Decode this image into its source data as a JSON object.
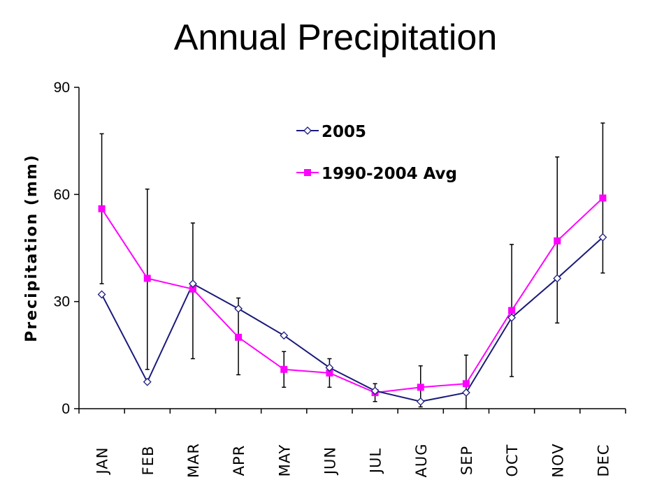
{
  "chart_data": {
    "type": "line",
    "title": "Annual Precipitation",
    "ylabel": "Precipitation (mm)",
    "xlabel": "",
    "ylim": [
      0,
      90
    ],
    "yticks": [
      0,
      30,
      60,
      90
    ],
    "categories": [
      "JAN",
      "FEB",
      "MAR",
      "APR",
      "MAY",
      "JUN",
      "JUL",
      "AUG",
      "SEP",
      "OCT",
      "NOV",
      "DEC"
    ],
    "series": [
      {
        "name": "2005",
        "color": "#1a1a7a",
        "marker": "open-diamond",
        "values": [
          32,
          7.5,
          35,
          28,
          20.5,
          11.5,
          5,
          2,
          4.5,
          25.5,
          36.5,
          48
        ]
      },
      {
        "name": "1990-2004 Avg",
        "color": "#ff00ff",
        "marker": "filled-square",
        "values": [
          56,
          36.5,
          33.5,
          20,
          11,
          10,
          4.5,
          6,
          7,
          27.5,
          47,
          59
        ],
        "error_low": [
          35,
          11,
          14,
          9.5,
          6,
          6,
          2,
          0.5,
          0,
          9,
          24,
          38
        ],
        "error_high": [
          77,
          61.5,
          52,
          31,
          16,
          14,
          7,
          12,
          15,
          46,
          70.5,
          80
        ]
      }
    ],
    "legend_position": "top-center",
    "grid": false
  }
}
